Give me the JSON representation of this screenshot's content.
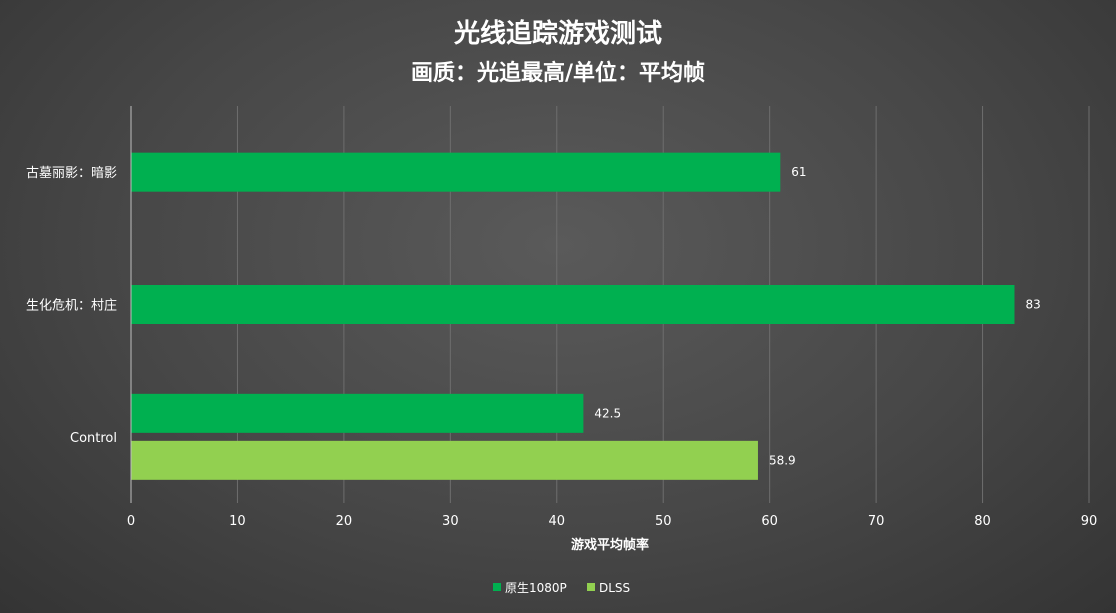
{
  "chart_data": {
    "type": "bar",
    "orientation": "horizontal",
    "title": "光线追踪游戏测试",
    "subtitle": "画质：光追最高/单位：平均帧",
    "xlabel": "游戏平均帧率",
    "ylabel": "",
    "xlim": [
      0,
      90
    ],
    "xticks": [
      0,
      10,
      20,
      30,
      40,
      50,
      60,
      70,
      80,
      90
    ],
    "grid": true,
    "legend_position": "bottom",
    "categories": [
      "古墓丽影：暗影",
      "生化危机：村庄",
      "Control"
    ],
    "series": [
      {
        "name": "原生1080P",
        "color": "#00b050",
        "values": [
          61,
          83,
          42.5
        ],
        "labels": [
          "61",
          "83",
          "42.5"
        ]
      },
      {
        "name": "DLSS",
        "color": "#92d050",
        "values": [
          null,
          null,
          58.9
        ],
        "labels": [
          "",
          "",
          "58.9"
        ]
      }
    ]
  }
}
